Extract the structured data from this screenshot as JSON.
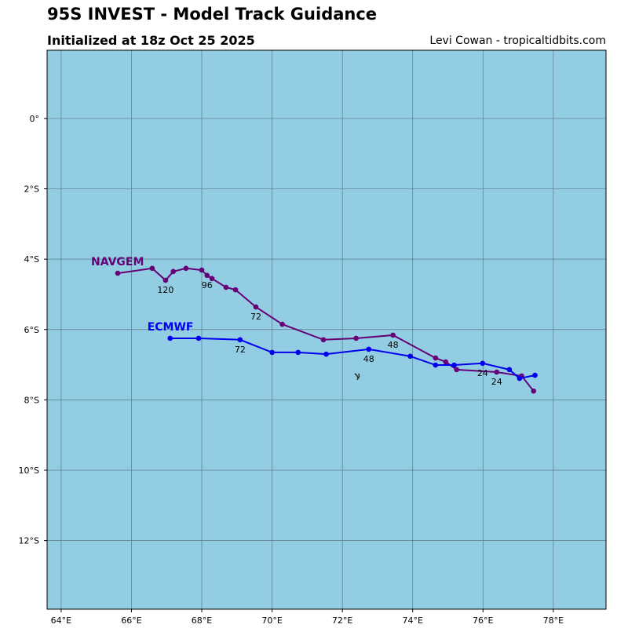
{
  "header": {
    "title": "95S INVEST - Model Track Guidance",
    "subtitle": "Initialized at 18z Oct 25 2025",
    "credit": "Levi Cowan - tropicaltidbits.com"
  },
  "map": {
    "ocean_color": "#93cde3",
    "grid_color": "#5a7a88",
    "extent": {
      "lon": [
        63.6,
        79.5
      ],
      "lat": [
        1.94,
        -13.95
      ]
    },
    "lon_ticks": [
      {
        "v": 64,
        "label": "64°E"
      },
      {
        "v": 66,
        "label": "66°E"
      },
      {
        "v": 68,
        "label": "68°E"
      },
      {
        "v": 70,
        "label": "70°E"
      },
      {
        "v": 72,
        "label": "72°E"
      },
      {
        "v": 74,
        "label": "74°E"
      },
      {
        "v": 76,
        "label": "76°E"
      },
      {
        "v": 78,
        "label": "78°E"
      }
    ],
    "lat_ticks": [
      {
        "v": 0,
        "label": "0°"
      },
      {
        "v": -2,
        "label": "2°S"
      },
      {
        "v": -4,
        "label": "4°S"
      },
      {
        "v": -6,
        "label": "6°S"
      },
      {
        "v": -8,
        "label": "8°S"
      },
      {
        "v": -10,
        "label": "10°S"
      },
      {
        "v": -12,
        "label": "12°S"
      }
    ],
    "storm_icon": "tropical-cyclone-icon",
    "storm_position": [
      72.44,
      -7.34
    ]
  },
  "models": [
    {
      "name": "NAVGEM",
      "color": "#660077",
      "points": [
        [
          77.44,
          -7.75
        ],
        [
          77.1,
          -7.32
        ],
        [
          76.39,
          -7.21
        ],
        [
          75.25,
          -7.14
        ],
        [
          74.94,
          -6.92
        ],
        [
          74.65,
          -6.81
        ],
        [
          73.44,
          -6.16
        ],
        [
          72.39,
          -6.25
        ],
        [
          71.46,
          -6.29
        ],
        [
          70.29,
          -5.85
        ],
        [
          69.54,
          -5.36
        ],
        [
          68.96,
          -4.87
        ],
        [
          68.69,
          -4.8
        ],
        [
          68.29,
          -4.55
        ],
        [
          68.15,
          -4.46
        ],
        [
          68.0,
          -4.31
        ],
        [
          67.55,
          -4.26
        ],
        [
          67.19,
          -4.35
        ],
        [
          66.97,
          -4.6
        ],
        [
          66.59,
          -4.26
        ],
        [
          65.61,
          -4.4
        ]
      ],
      "hour_labels": [
        {
          "label": "24",
          "at": [
            76.39,
            -7.21
          ]
        },
        {
          "label": "48",
          "at": [
            73.44,
            -6.16
          ]
        },
        {
          "label": "72",
          "at": [
            69.54,
            -5.36
          ]
        },
        {
          "label": "96",
          "at": [
            68.15,
            -4.46
          ]
        },
        {
          "label": "120",
          "at": [
            66.97,
            -4.6
          ]
        }
      ]
    },
    {
      "name": "ECMWF",
      "color": "#0000ee",
      "points": [
        [
          77.48,
          -7.3
        ],
        [
          77.04,
          -7.39
        ],
        [
          76.75,
          -7.14
        ],
        [
          75.99,
          -6.96
        ],
        [
          75.18,
          -7.01
        ],
        [
          74.65,
          -7.01
        ],
        [
          73.93,
          -6.76
        ],
        [
          72.75,
          -6.56
        ],
        [
          71.54,
          -6.7
        ],
        [
          70.74,
          -6.65
        ],
        [
          70.0,
          -6.65
        ],
        [
          69.09,
          -6.29
        ],
        [
          67.91,
          -6.25
        ],
        [
          67.1,
          -6.25
        ]
      ],
      "hour_labels": [
        {
          "label": "24",
          "at": [
            75.99,
            -6.96
          ]
        },
        {
          "label": "48",
          "at": [
            72.75,
            -6.56
          ]
        },
        {
          "label": "72",
          "at": [
            69.09,
            -6.29
          ]
        }
      ]
    }
  ]
}
